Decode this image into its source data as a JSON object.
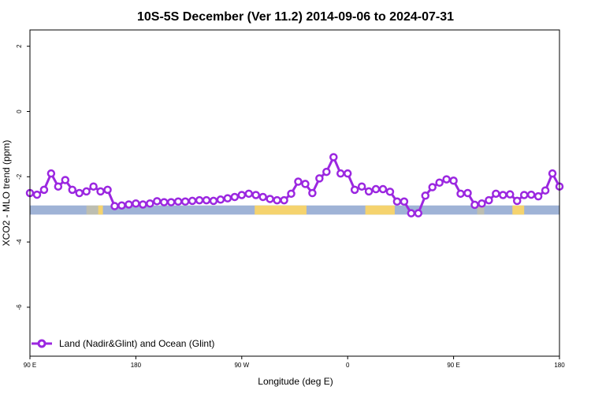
{
  "chart_data": {
    "type": "line",
    "title": "10S-5S December (Ver 11.2)   2014-09-06 to 2024-07-31",
    "xlabel": "Longitude (deg E)",
    "ylabel": "XCO2 - MLO trend (ppm)",
    "x_tick_labels": [
      "90 E",
      "180",
      "90 W",
      "0",
      "90 E",
      "180"
    ],
    "y_tick_labels": [
      "2",
      "0",
      "-2",
      "-4",
      "-6"
    ],
    "xlim": [
      0,
      450
    ],
    "ylim": [
      -7.5,
      2.5
    ],
    "legend_position": "bottom-left",
    "colors": {
      "series": "#9b27e0",
      "ocean": "#9fb3d6",
      "land": "#f5d36e"
    },
    "series": [
      {
        "name": "Land (Nadir&Glint) and Ocean (Glint)",
        "x": [
          0,
          6,
          12,
          18,
          24,
          30,
          36,
          42,
          48,
          54,
          60,
          66,
          72,
          78,
          84,
          90,
          96,
          102,
          108,
          114,
          120,
          126,
          132,
          138,
          144,
          150,
          156,
          162,
          168,
          174,
          180,
          186,
          192,
          198,
          204,
          210,
          216,
          222,
          228,
          234,
          240,
          246,
          252,
          258,
          264,
          270,
          276,
          282,
          288,
          294,
          300,
          306,
          312,
          318,
          324,
          330,
          336,
          342,
          348,
          354,
          360,
          366,
          372,
          378,
          384,
          390,
          396,
          402,
          408,
          414,
          420,
          426,
          432,
          438,
          444,
          450
        ],
        "y": [
          -2.5,
          -2.55,
          -2.4,
          -1.9,
          -2.3,
          -2.1,
          -2.4,
          -2.5,
          -2.45,
          -2.3,
          -2.45,
          -2.4,
          -2.9,
          -2.88,
          -2.85,
          -2.82,
          -2.85,
          -2.82,
          -2.75,
          -2.78,
          -2.78,
          -2.76,
          -2.76,
          -2.74,
          -2.72,
          -2.72,
          -2.74,
          -2.7,
          -2.66,
          -2.62,
          -2.56,
          -2.52,
          -2.56,
          -2.62,
          -2.68,
          -2.72,
          -2.72,
          -2.52,
          -2.15,
          -2.22,
          -2.5,
          -2.05,
          -1.85,
          -1.4,
          -1.9,
          -1.9,
          -2.4,
          -2.3,
          -2.45,
          -2.38,
          -2.38,
          -2.46,
          -2.76,
          -2.76,
          -3.12,
          -3.12,
          -2.58,
          -2.32,
          -2.18,
          -2.08,
          -2.12,
          -2.52,
          -2.5,
          -2.86,
          -2.82,
          -2.72,
          -2.52,
          -2.56,
          -2.54,
          -2.74,
          -2.56,
          -2.55,
          -2.6,
          -2.42,
          -1.9,
          -2.3
        ]
      }
    ]
  }
}
